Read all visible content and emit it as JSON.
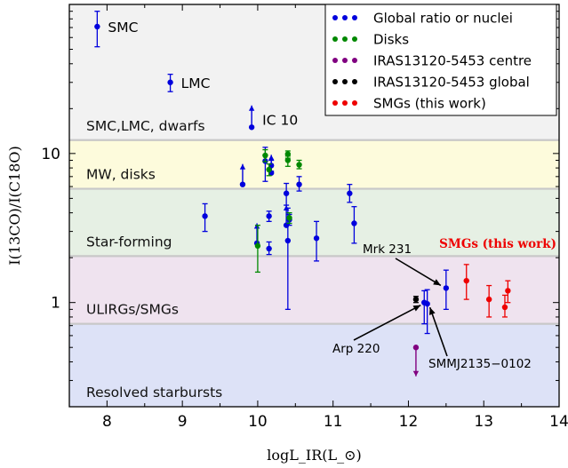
{
  "chart_data": {
    "type": "scatter",
    "xlabel": "logL_IR(L_⊙)",
    "ylabel": "I(13CO)/I(C18O)",
    "xlim": [
      7.5,
      14
    ],
    "ylim": [
      0.2,
      100
    ],
    "yscale": "log",
    "x_ticks": [
      "8",
      "9",
      "10",
      "11",
      "12",
      "13",
      "14"
    ],
    "y_ticks": [
      {
        "value": 1,
        "label": "1"
      },
      {
        "value": 10,
        "label": "10"
      }
    ],
    "legend_position": "top-right",
    "bands": [
      {
        "label": "SMC,LMC, dwarfs",
        "ymin": 12.3,
        "ymax": 100,
        "color": "#f2f2f2"
      },
      {
        "label": "MW, disks",
        "ymin": 5.8,
        "ymax": 12.3,
        "color": "#fdfbdc"
      },
      {
        "label": "Star-forming",
        "ymin": 2.05,
        "ymax": 5.8,
        "color": "#e6f0e4"
      },
      {
        "label": "ULIRGs/SMGs",
        "ymin": 0.72,
        "ymax": 2.05,
        "color": "#efe3ef"
      },
      {
        "label": "Resolved starbursts",
        "ymin": 0.2,
        "ymax": 0.72,
        "color": "#dde2f7"
      }
    ],
    "band_label_color": "#111111",
    "series": [
      {
        "name": "Global ratio or nuclei",
        "color": "#0000dd",
        "points": [
          {
            "x": 7.87,
            "y": 71,
            "lo": 52,
            "hi": 90,
            "label": "SMC"
          },
          {
            "x": 8.84,
            "y": 30,
            "lo": 26,
            "hi": 34,
            "label": "LMC"
          },
          {
            "x": 9.3,
            "y": 3.8,
            "lo": 3.0,
            "hi": 4.6
          },
          {
            "x": 9.8,
            "y": 6.2,
            "lo": null,
            "hi": 8.5,
            "limit": "lower"
          },
          {
            "x": 9.99,
            "y": 2.5,
            "lo": null,
            "hi": 3.4,
            "limit": "lower"
          },
          {
            "x": 10.1,
            "y": 8.9,
            "lo": 6.5,
            "hi": 11.0
          },
          {
            "x": 10.15,
            "y": 3.8,
            "lo": 3.5,
            "hi": 4.1
          },
          {
            "x": 10.15,
            "y": 2.3,
            "lo": 2.1,
            "hi": 2.55
          },
          {
            "x": 10.18,
            "y": 8.3,
            "lo": 7.6,
            "hi": 9.0
          },
          {
            "x": 10.18,
            "y": 7.4,
            "lo": null,
            "hi": 9.8,
            "limit": "lower"
          },
          {
            "x": 10.38,
            "y": 5.4,
            "lo": 4.5,
            "hi": 6.3
          },
          {
            "x": 10.38,
            "y": 3.3,
            "lo": null,
            "hi": 4.5,
            "limit": "lower"
          },
          {
            "x": 10.4,
            "y": 2.6,
            "lo": 0.9,
            "hi": 4.3
          },
          {
            "x": 10.42,
            "y": 3.6,
            "lo": 3.3,
            "hi": 3.9
          },
          {
            "x": 10.55,
            "y": 6.2,
            "lo": 5.6,
            "hi": 7.0
          },
          {
            "x": 10.78,
            "y": 2.7,
            "lo": 1.9,
            "hi": 3.5
          },
          {
            "x": 11.22,
            "y": 5.4,
            "lo": 4.7,
            "hi": 6.2
          },
          {
            "x": 11.28,
            "y": 3.4,
            "lo": 2.5,
            "hi": 4.4
          },
          {
            "x": 12.5,
            "y": 1.25,
            "lo": 0.9,
            "hi": 1.65,
            "label": "Mrk 231"
          },
          {
            "x": 12.21,
            "y": 1.0,
            "lo": 0.72,
            "hi": 1.2,
            "label": "Arp 220"
          },
          {
            "x": 12.25,
            "y": 0.98,
            "lo": 0.62,
            "hi": 1.22,
            "label": "SMMJ2135−0102"
          },
          {
            "x": 9.92,
            "y": 15,
            "lo": null,
            "hi": 21,
            "limit": "lower",
            "label": "IC 10"
          }
        ]
      },
      {
        "name": "Disks",
        "color": "#008800",
        "points": [
          {
            "x": 10.0,
            "y": 2.4,
            "lo": 1.6,
            "hi": 3.3
          },
          {
            "x": 10.1,
            "y": 9.7,
            "lo": 8.8,
            "hi": 10.6
          },
          {
            "x": 10.15,
            "y": 7.8,
            "lo": 7.1,
            "hi": 8.5
          },
          {
            "x": 10.4,
            "y": 9.9,
            "lo": 9.3,
            "hi": 10.4
          },
          {
            "x": 10.4,
            "y": 9.0,
            "lo": 8.2,
            "hi": 9.6
          },
          {
            "x": 10.55,
            "y": 8.4,
            "lo": 7.9,
            "hi": 9.0
          },
          {
            "x": 10.42,
            "y": 3.7,
            "lo": 3.4,
            "hi": 4.0
          }
        ]
      },
      {
        "name": "IRAS13120-5453 centre",
        "color": "#800080",
        "points": [
          {
            "x": 12.1,
            "y": 0.5,
            "lo": null,
            "hi": null,
            "limit": "upper",
            "to": 0.32
          }
        ]
      },
      {
        "name": "IRAS13120-5453 global",
        "color": "#000000",
        "points": [
          {
            "x": 12.1,
            "y": 1.05,
            "lo": 1.0,
            "hi": 1.1
          }
        ]
      },
      {
        "name": "SMGs (this work)",
        "color": "#ee0000",
        "points": [
          {
            "x": 12.77,
            "y": 1.4,
            "lo": 1.05,
            "hi": 1.8
          },
          {
            "x": 13.07,
            "y": 1.05,
            "lo": 0.8,
            "hi": 1.3
          },
          {
            "x": 13.28,
            "y": 0.93,
            "lo": 0.8,
            "hi": 1.12
          },
          {
            "x": 13.32,
            "y": 1.2,
            "lo": 1.0,
            "hi": 1.4
          }
        ]
      }
    ],
    "annotations": [
      {
        "text": "SMGs (this work)",
        "color": "#ee0000",
        "serif": true
      }
    ]
  }
}
